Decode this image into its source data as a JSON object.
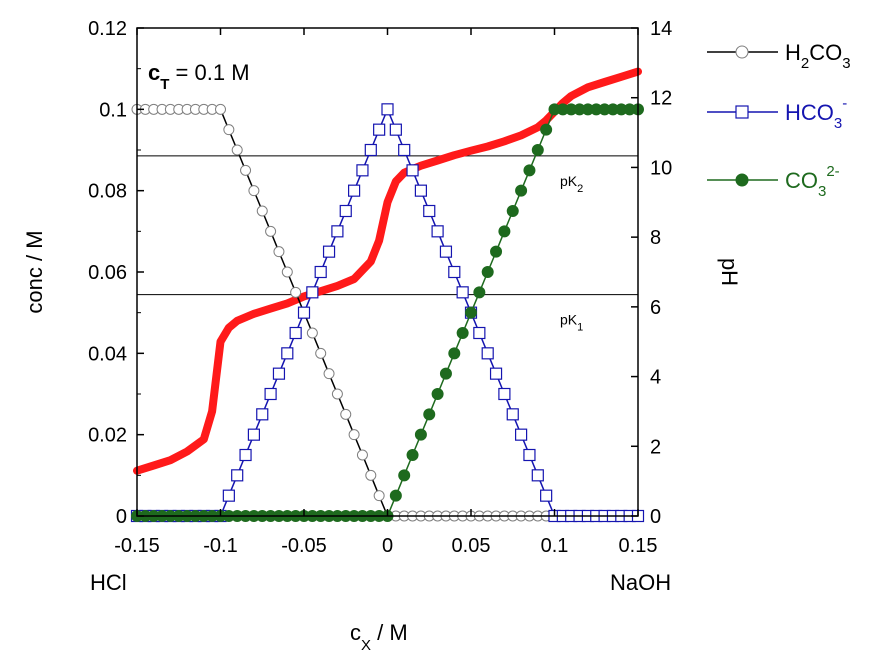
{
  "chart_data": {
    "type": "line",
    "x_axis": {
      "label_main": "c",
      "label_sub": "X",
      "label_rest": " / M",
      "range": [
        -0.15,
        0.15
      ],
      "ticks": [
        -0.15,
        -0.1,
        -0.05,
        0,
        0.05,
        0.1,
        0.15
      ],
      "tick_labels": [
        "-0.15",
        "-0.1",
        "-0.05",
        "0",
        "0.05",
        "0.1",
        "0.15"
      ],
      "left_end_label": "HCl",
      "right_end_label": "NaOH"
    },
    "y_axis_left": {
      "label": "conc / M",
      "range": [
        0,
        0.12
      ],
      "ticks": [
        0,
        0.02,
        0.04,
        0.06,
        0.08,
        0.1,
        0.12
      ],
      "tick_labels": [
        "0",
        "0.02",
        "0.04",
        "0.06",
        "0.08",
        "0.1",
        "0.12"
      ]
    },
    "y_axis_right": {
      "label": "pH",
      "range": [
        0,
        14
      ],
      "ticks": [
        0,
        2,
        4,
        6,
        8,
        10,
        12,
        14
      ],
      "tick_labels": [
        "0",
        "2",
        "4",
        "6",
        "8",
        "10",
        "12",
        "14"
      ]
    },
    "annotation": {
      "main": "c",
      "sub": "T",
      "rest": " = 0.1 M"
    },
    "reference_lines": [
      {
        "axis": "pH",
        "value": 6.35,
        "label_main": "pK",
        "label_sub": "1"
      },
      {
        "axis": "pH",
        "value": 10.33,
        "label_main": "pK",
        "label_sub": "2"
      }
    ],
    "x_sample": {
      "start": -0.15,
      "end": 0.15,
      "step": 0.005
    },
    "ct": 0.1,
    "pK1": 6.35,
    "pK2": 10.33,
    "series": [
      {
        "key": "h2co3",
        "legend_parts": [
          [
            "H",
            false
          ],
          [
            "2",
            true
          ],
          [
            "CO",
            false
          ],
          [
            "3",
            true
          ]
        ],
        "color": "#000000",
        "legend_color": "#000000",
        "marker": "open-circle",
        "marker_fill": "#ffffff",
        "marker_stroke": "#7f7f7f",
        "axis": "left"
      },
      {
        "key": "hco3",
        "legend_parts": [
          [
            "HCO",
            false
          ],
          [
            "3",
            true
          ]
        ],
        "legend_sup": "-",
        "color": "#1515b0",
        "legend_color": "#1515b0",
        "marker": "open-square",
        "marker_fill": "#ffffff",
        "marker_stroke": "#1515b0",
        "axis": "left"
      },
      {
        "key": "co3",
        "legend_parts": [
          [
            "CO",
            false
          ],
          [
            "3",
            true
          ]
        ],
        "legend_sup": "2-",
        "color": "#1e6a1e",
        "legend_color": "#1e6a1e",
        "marker": "filled-circle",
        "marker_fill": "#1e6a1e",
        "marker_stroke": "#1e6a1e",
        "axis": "left"
      },
      {
        "key": "ph",
        "name": "pH",
        "color": "#ff1a1a",
        "marker": "none",
        "axis": "right"
      }
    ],
    "ph_curve": {
      "x": [
        -0.15,
        -0.14,
        -0.13,
        -0.12,
        -0.11,
        -0.105,
        -0.1,
        -0.095,
        -0.09,
        -0.08,
        -0.07,
        -0.06,
        -0.05,
        -0.04,
        -0.03,
        -0.02,
        -0.01,
        -0.005,
        0,
        0.005,
        0.01,
        0.02,
        0.03,
        0.04,
        0.05,
        0.06,
        0.07,
        0.08,
        0.09,
        0.095,
        0.1,
        0.105,
        0.11,
        0.12,
        0.13,
        0.14,
        0.15
      ],
      "y": [
        1.3,
        1.45,
        1.6,
        1.85,
        2.2,
        3.0,
        5.0,
        5.4,
        5.6,
        5.8,
        5.95,
        6.1,
        6.3,
        6.45,
        6.6,
        6.8,
        7.3,
        7.9,
        9.0,
        9.6,
        9.85,
        10.05,
        10.2,
        10.35,
        10.48,
        10.6,
        10.75,
        10.92,
        11.15,
        11.35,
        11.6,
        11.85,
        12.05,
        12.3,
        12.45,
        12.6,
        12.75
      ]
    }
  }
}
